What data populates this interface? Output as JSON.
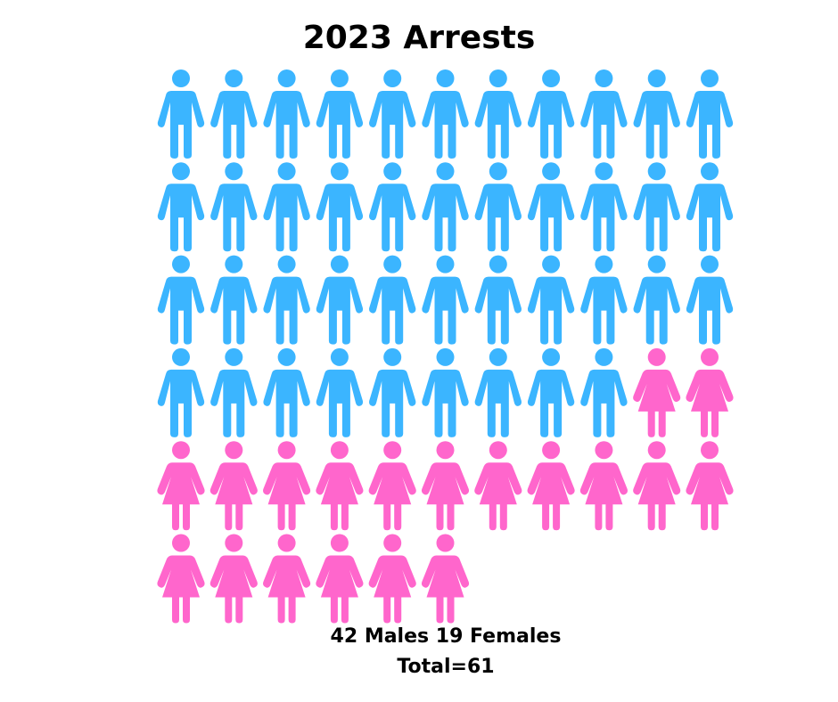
{
  "chart_data": {
    "type": "pictogram",
    "title": "2023 Arrests",
    "categories": [
      "Males",
      "Females"
    ],
    "values": [
      42,
      19
    ],
    "total": 61,
    "icons_per_row": 11,
    "series": [
      {
        "name": "Males",
        "value": 42,
        "color": "#3bb5ff",
        "icon": "male-person-icon"
      },
      {
        "name": "Females",
        "value": 19,
        "color": "#ff66cc",
        "icon": "female-person-icon"
      }
    ]
  },
  "caption": {
    "line1": "42 Males 19 Females",
    "line2": "Total=61"
  }
}
